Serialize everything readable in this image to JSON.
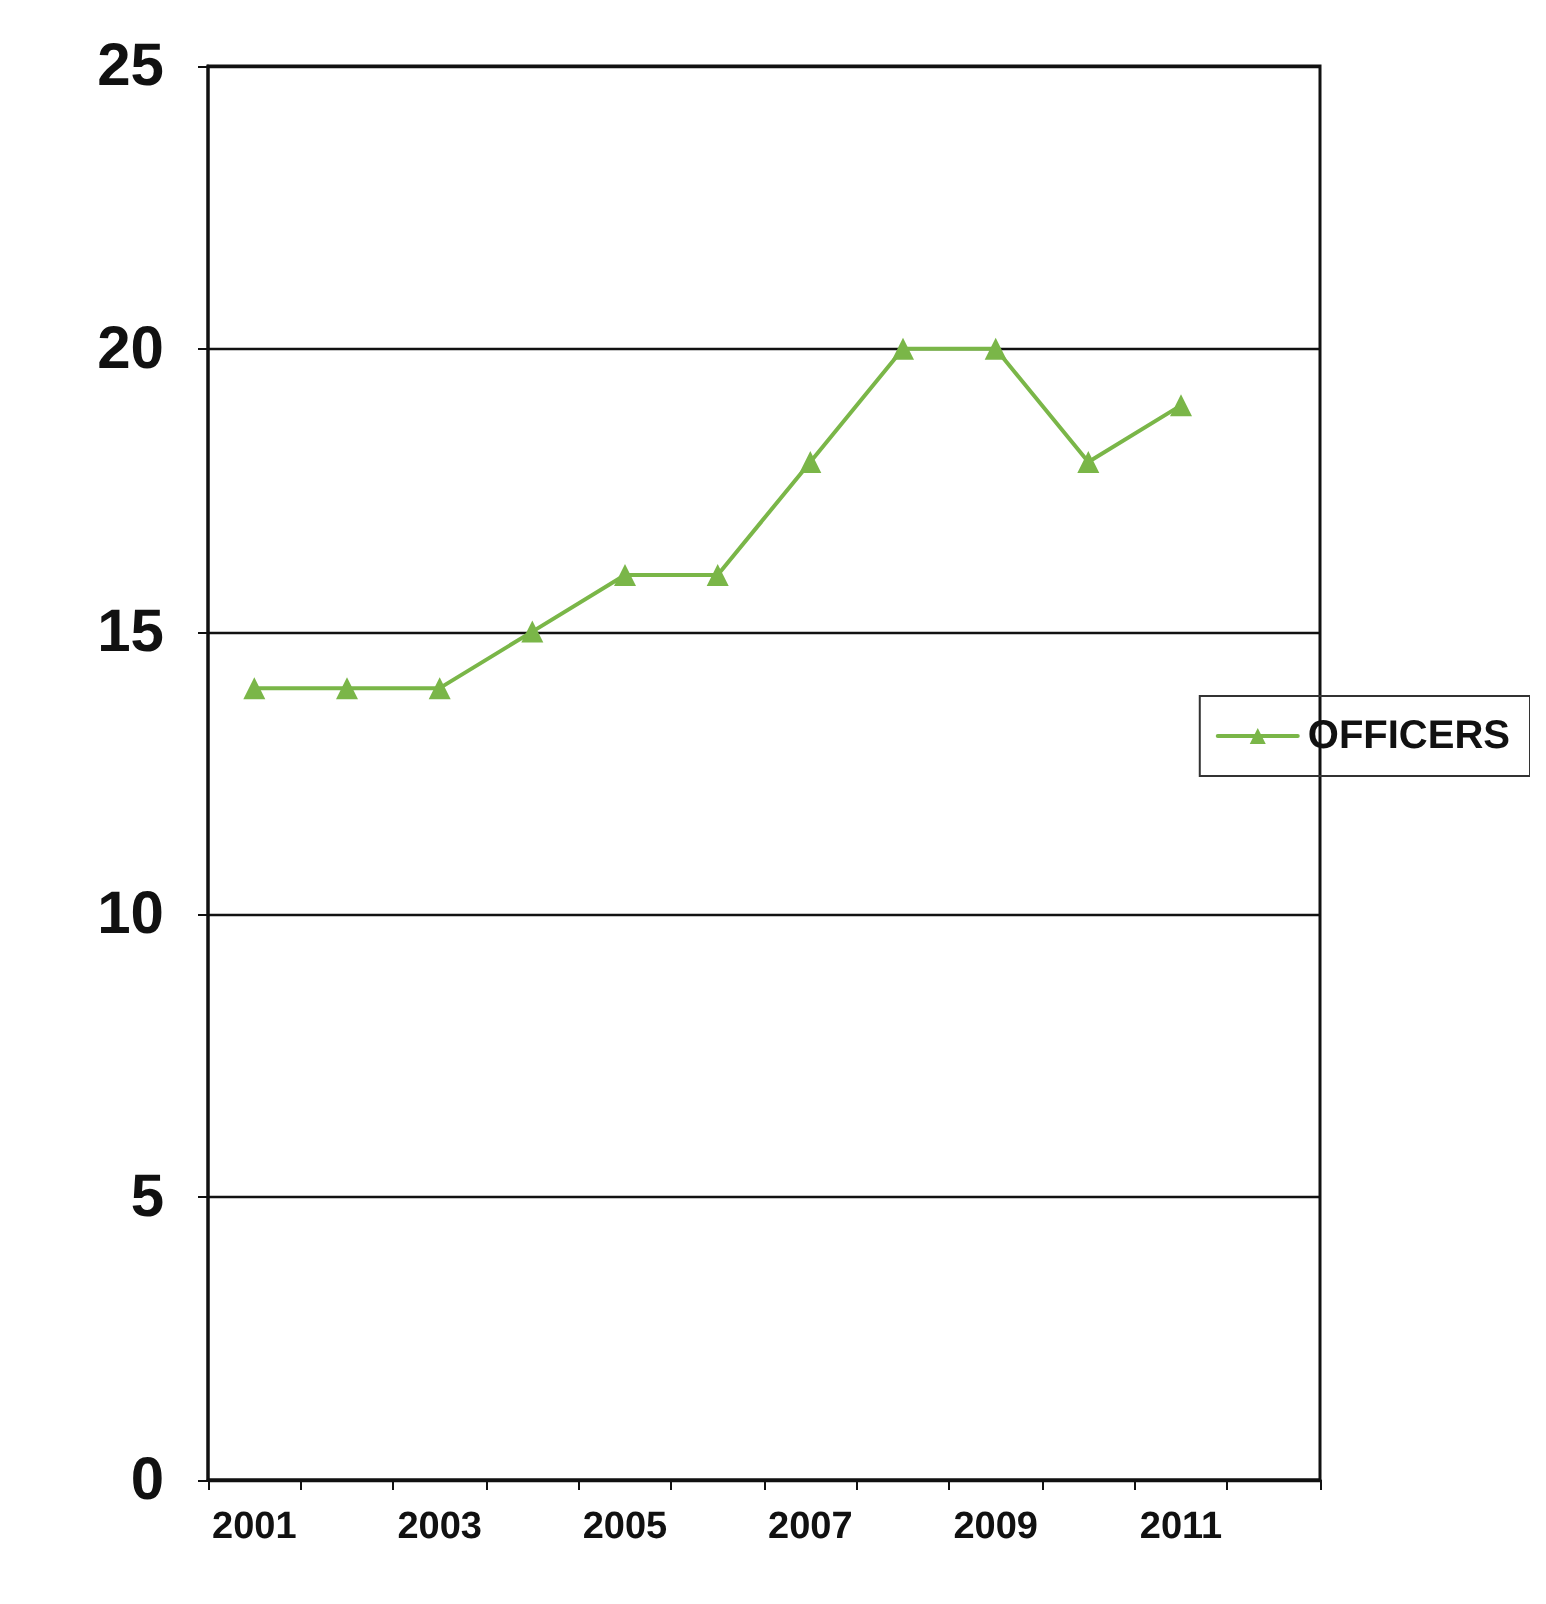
{
  "chart_data": {
    "type": "line",
    "categories": [
      "2001",
      null,
      "2003",
      null,
      "2005",
      null,
      "2007",
      null,
      "2009",
      null,
      "2011",
      null
    ],
    "series": [
      {
        "name": "OFFICERS",
        "color": "#7ab648",
        "values": [
          14,
          14,
          14,
          15,
          16,
          16,
          18,
          20,
          20,
          18,
          19,
          null
        ]
      }
    ],
    "ylim": [
      0,
      25
    ],
    "yticks": [
      0,
      5,
      10,
      15,
      20,
      25
    ],
    "grid": "y",
    "legend": "right",
    "marker": "triangle",
    "line_style": "solid"
  }
}
